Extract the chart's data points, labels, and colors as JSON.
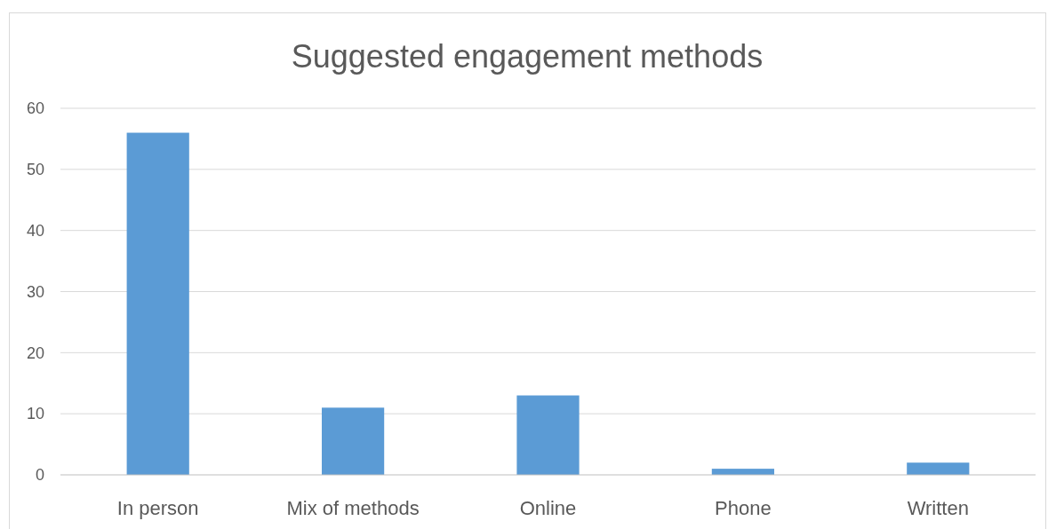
{
  "chart_data": {
    "type": "bar",
    "title": "Suggested engagement methods",
    "categories": [
      "In person",
      "Mix of methods",
      "Online",
      "Phone",
      "Written"
    ],
    "values": [
      56,
      11,
      13,
      1,
      2
    ],
    "color": "#5b9bd5",
    "ylim": [
      0,
      60
    ],
    "yticks": [
      0,
      10,
      20,
      30,
      40,
      50,
      60
    ],
    "grid": "y"
  }
}
